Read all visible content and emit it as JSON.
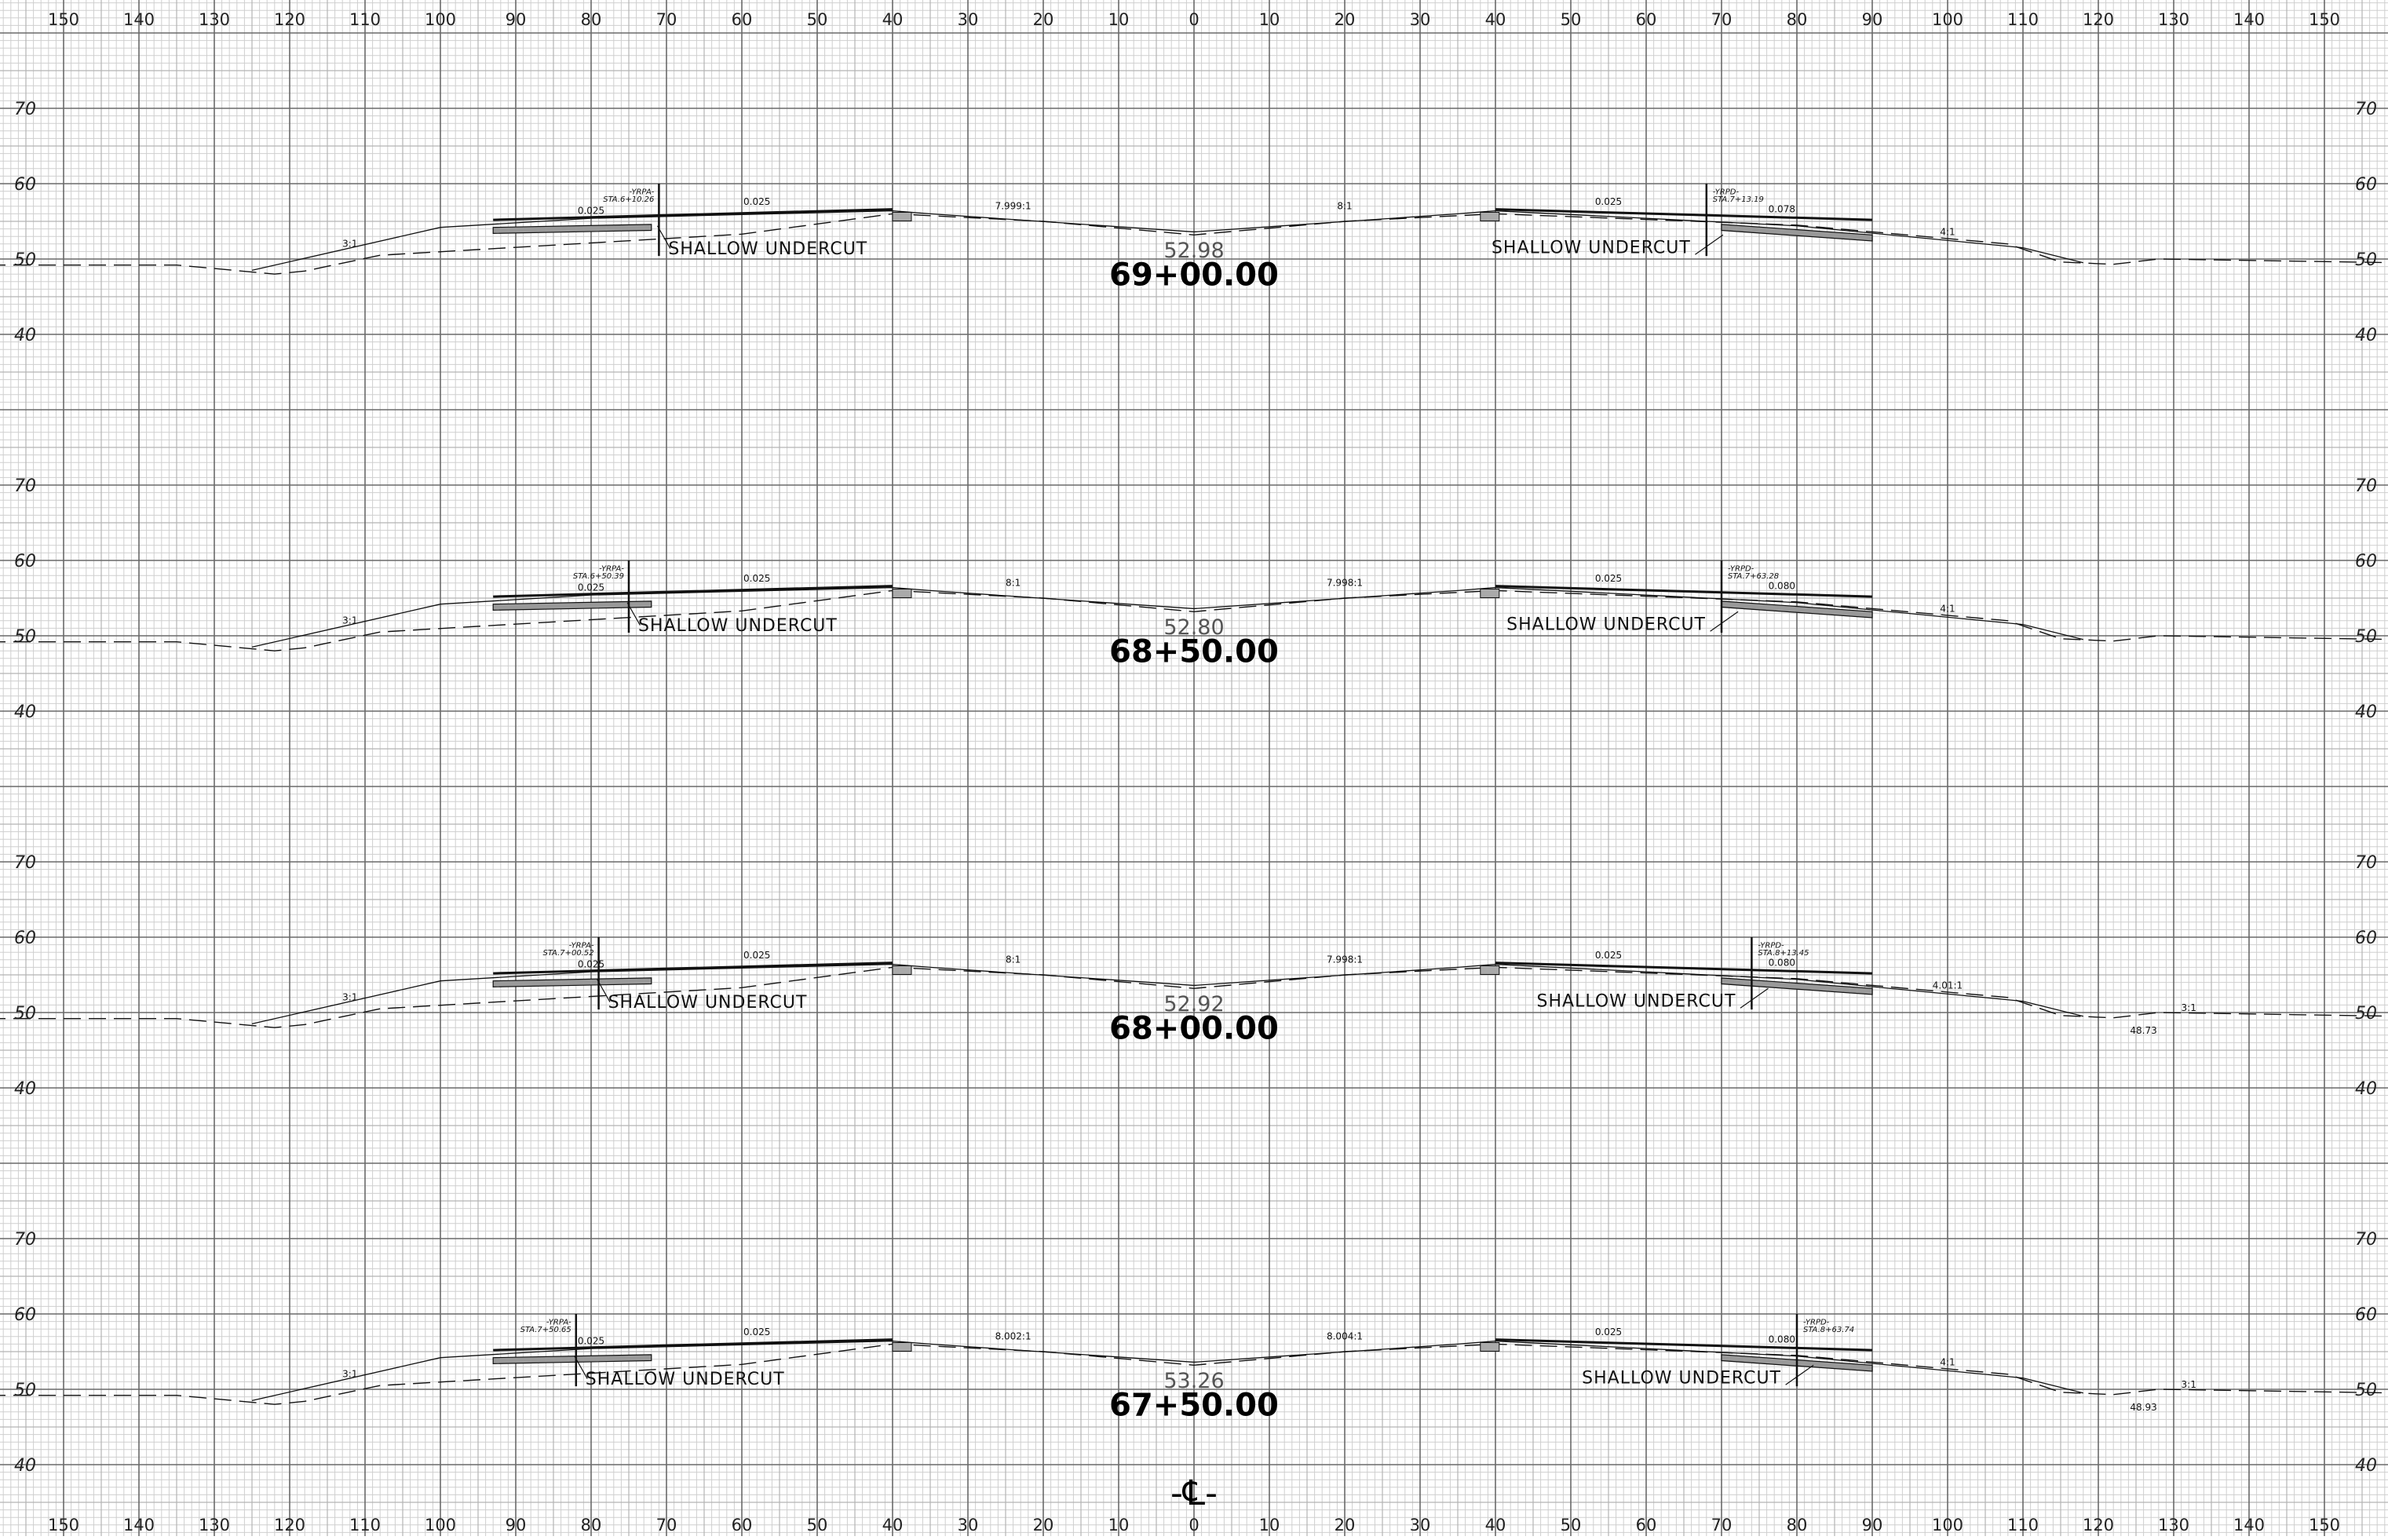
{
  "axis": {
    "top_ticks": [
      "150",
      "140",
      "130",
      "120",
      "110",
      "100",
      "90",
      "80",
      "70",
      "60",
      "50",
      "40",
      "30",
      "20",
      "10",
      "0",
      "10",
      "20",
      "30",
      "40",
      "50",
      "60",
      "70",
      "80",
      "90",
      "100",
      "110",
      "120",
      "130",
      "140",
      "150"
    ],
    "bottom_ticks": [
      "150",
      "140",
      "130",
      "120",
      "110",
      "100",
      "90",
      "80",
      "70",
      "60",
      "50",
      "40",
      "30",
      "20",
      "10",
      "0",
      "10",
      "20",
      "30",
      "40",
      "50",
      "60",
      "70",
      "80",
      "90",
      "100",
      "110",
      "120",
      "130",
      "140",
      "150"
    ],
    "elevation_labels": [
      "70",
      "60",
      "50",
      "40"
    ]
  },
  "sections": [
    {
      "station": "69+00.00",
      "grade_elev": "52.98",
      "left_note": "SHALLOW UNDERCUT",
      "right_note": "SHALLOW UNDERCUT",
      "left_label_top": "-YRPA-",
      "left_label_sta": "STA.6+10.26",
      "right_label_top": "-YRPD-",
      "right_label_sta": "STA.7+13.19",
      "slopes": [
        "3:1",
        "0.025",
        "0.025",
        "7.999:1",
        "8:1",
        "0.025",
        "0.078",
        "4:1"
      ]
    },
    {
      "station": "68+50.00",
      "grade_elev": "52.80",
      "left_note": "SHALLOW UNDERCUT",
      "right_note": "SHALLOW UNDERCUT",
      "left_label_top": "-YRPA-",
      "left_label_sta": "STA.6+50.39",
      "right_label_top": "-YRPD-",
      "right_label_sta": "STA.7+63.28",
      "slopes": [
        "3:1",
        "0.025",
        "0.025",
        "8:1",
        "7.998:1",
        "0.025",
        "0.080",
        "4:1"
      ]
    },
    {
      "station": "68+00.00",
      "grade_elev": "52.92",
      "left_note": "SHALLOW UNDERCUT",
      "right_note": "SHALLOW UNDERCUT",
      "left_label_top": "-YRPA-",
      "left_label_sta": "STA.7+00.52",
      "right_label_top": "-YRPD-",
      "right_label_sta": "STA.8+13.45",
      "slopes": [
        "3:1",
        "0.025",
        "0.025",
        "8:1",
        "7.998:1",
        "0.025",
        "0.080",
        "4.01:1",
        "3:1"
      ],
      "extra_elev": "48.73"
    },
    {
      "station": "67+50.00",
      "grade_elev": "53.26",
      "left_note": "SHALLOW UNDERCUT",
      "right_note": "SHALLOW UNDERCUT",
      "left_label_top": "-YRPA-",
      "left_label_sta": "STA.7+50.65",
      "right_label_top": "-YRPD-",
      "right_label_sta": "STA.8+63.74",
      "slopes": [
        "3:1",
        "0.025",
        "0.025",
        "8.002:1",
        "8.004:1",
        "0.025",
        "0.080",
        "4:1",
        "3:1"
      ],
      "extra_elev": "48.93"
    }
  ],
  "centerline_symbol": "-℄-"
}
